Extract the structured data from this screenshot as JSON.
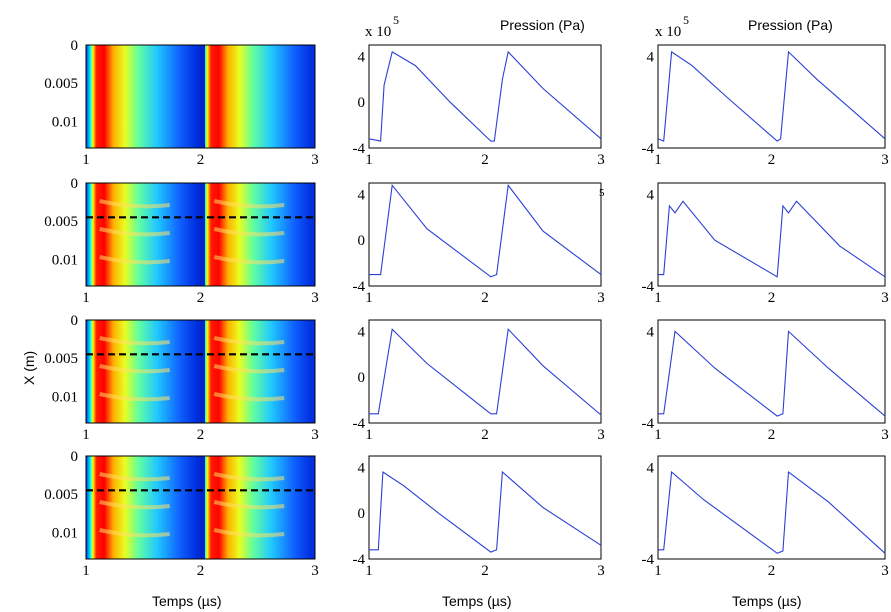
{
  "headers": {
    "col2_multiplier": "x 10",
    "col2_exponent": "5",
    "col2_title": "Pression (Pa)",
    "col3_multiplier": "x 10",
    "col3_exponent": "5",
    "col3_title": "Pression (Pa)",
    "stray_exponent": "5"
  },
  "ylabel_left": "X (m)",
  "xlabels": [
    "Temps (µs)",
    "Temps (µs)",
    "Temps (µs)"
  ],
  "colors": {
    "curve": "#2b3fd6",
    "colormap": [
      "#00008f",
      "#0000ff",
      "#00ffff",
      "#ffff00",
      "#ff0000",
      "#800000"
    ]
  },
  "chart_data": [
    {
      "type": "heatmap",
      "panels": 4,
      "xlabel": "Temps (µs)",
      "ylabel": "X (m)",
      "xticks": [
        "1",
        "2",
        "3"
      ],
      "yticks": [
        "0",
        "0.005",
        "0.01"
      ],
      "xlim": [
        1,
        3
      ],
      "ylim": [
        0,
        0.0135
      ],
      "dashed_line_depth": [
        null,
        0.0045,
        0.0045,
        0.0045
      ]
    },
    {
      "type": "line",
      "panels": 4,
      "title": "Pression (Pa)",
      "multiplier": "x 10^5",
      "xlabel": "Temps (µs)",
      "xticks": [
        "1",
        "2",
        "3"
      ],
      "yticks": [
        "4",
        "0",
        "-4"
      ],
      "xlim": [
        1,
        3
      ],
      "ylim": [
        -4,
        5
      ],
      "series": [
        {
          "x": [
            1.0,
            1.1,
            1.13,
            1.2,
            1.4,
            1.7,
            2.05,
            2.08,
            2.15,
            2.2,
            2.5,
            3.0
          ],
          "values": [
            -3.2,
            -3.4,
            1.5,
            4.4,
            3.2,
            0.0,
            -3.4,
            -3.4,
            2.0,
            4.4,
            1.2,
            -3.2
          ]
        },
        {
          "x": [
            1.0,
            1.1,
            1.2,
            1.5,
            2.05,
            2.1,
            2.2,
            2.5,
            3.0
          ],
          "values": [
            -3.0,
            -3.0,
            4.8,
            1.0,
            -3.2,
            -3.0,
            4.8,
            0.8,
            -3.0
          ]
        },
        {
          "x": [
            1.0,
            1.08,
            1.2,
            1.5,
            2.05,
            2.1,
            2.2,
            2.5,
            3.0
          ],
          "values": [
            -3.2,
            -3.2,
            4.2,
            1.2,
            -3.2,
            -3.2,
            4.2,
            1.0,
            -3.3
          ]
        },
        {
          "x": [
            1.0,
            1.08,
            1.12,
            1.3,
            1.6,
            2.05,
            2.1,
            2.15,
            2.5,
            3.0
          ],
          "values": [
            -3.2,
            -3.2,
            3.6,
            2.4,
            0.0,
            -3.4,
            -3.2,
            3.6,
            0.5,
            -2.8
          ]
        }
      ]
    },
    {
      "type": "line",
      "panels": 4,
      "title": "Pression (Pa)",
      "multiplier": "x 10^5",
      "xlabel": "Temps (µs)",
      "xticks": [
        "1",
        "2",
        "3"
      ],
      "yticks": [
        "4",
        "-4"
      ],
      "xlim": [
        1,
        3
      ],
      "ylim": [
        -4,
        5
      ],
      "series": [
        {
          "x": [
            1.0,
            1.05,
            1.12,
            1.3,
            1.6,
            2.05,
            2.08,
            2.15,
            2.4,
            3.0
          ],
          "values": [
            -3.2,
            -3.4,
            4.4,
            3.2,
            0.5,
            -3.4,
            -3.2,
            4.4,
            2.0,
            -3.2
          ]
        },
        {
          "x": [
            1.0,
            1.05,
            1.1,
            1.15,
            1.22,
            1.5,
            2.05,
            2.1,
            2.15,
            2.22,
            2.6,
            3.0
          ],
          "values": [
            -3.0,
            -3.0,
            3.0,
            2.4,
            3.4,
            0.0,
            -3.2,
            3.0,
            2.4,
            3.4,
            -0.5,
            -3.2
          ]
        },
        {
          "x": [
            1.0,
            1.05,
            1.15,
            1.5,
            2.05,
            2.1,
            2.15,
            2.5,
            3.0
          ],
          "values": [
            -3.2,
            -3.2,
            4.0,
            0.8,
            -3.4,
            -3.2,
            4.0,
            0.8,
            -3.4
          ]
        },
        {
          "x": [
            1.0,
            1.05,
            1.12,
            1.4,
            2.05,
            2.1,
            2.15,
            2.5,
            3.0
          ],
          "values": [
            -3.2,
            -3.2,
            3.6,
            1.2,
            -3.5,
            -3.3,
            3.6,
            1.0,
            -3.5
          ]
        }
      ]
    }
  ]
}
